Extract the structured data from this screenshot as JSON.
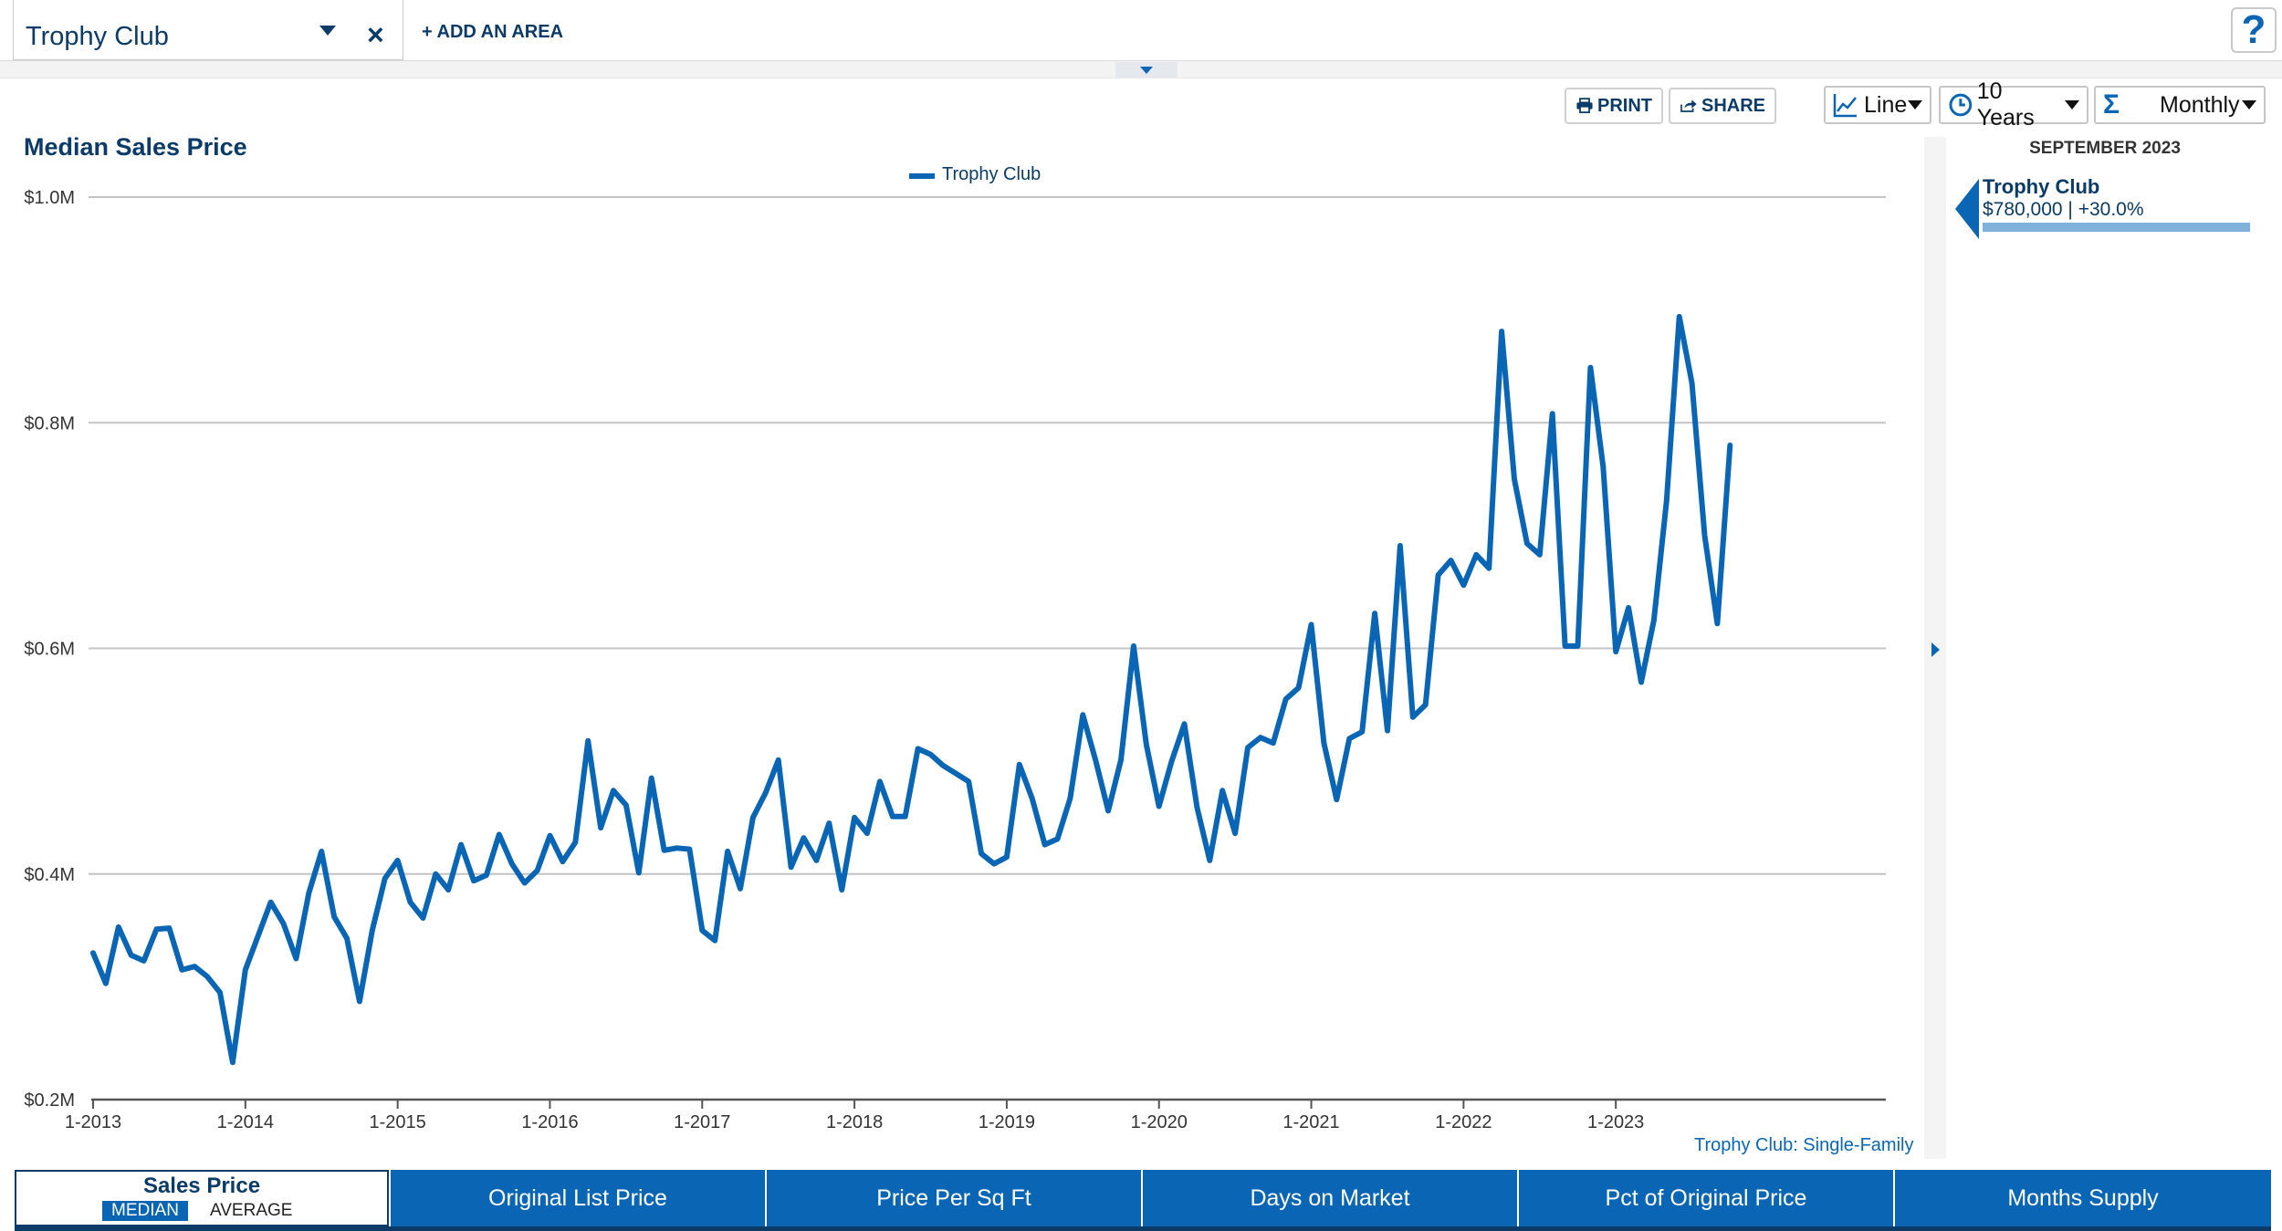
{
  "area": {
    "name": "Trophy Club",
    "add_label": "+ ADD AN AREA"
  },
  "help_label": "?",
  "toolbar": {
    "print_label": "PRINT",
    "share_label": "SHARE",
    "chart_type": "Line",
    "range": "10 Years",
    "interval": "Monthly"
  },
  "panel": {
    "date": "SEPTEMBER 2023",
    "name": "Trophy Club",
    "value": "$780,000 | +30.0%"
  },
  "source_note": "Trophy Club: Single-Family",
  "tabs": {
    "sales_price": "Sales Price",
    "median": "MEDIAN",
    "average": "AVERAGE",
    "others": [
      "Original List Price",
      "Price Per Sq Ft",
      "Days on Market",
      "Pct of Original Price",
      "Months Supply"
    ]
  },
  "colors": {
    "accent": "#0a66b4",
    "navy": "#0b3b66"
  },
  "chart_data": {
    "type": "line",
    "title": "Median Sales Price",
    "xlabel": "",
    "ylabel": "",
    "ylim": [
      200000,
      1000000
    ],
    "yticks": [
      200000,
      400000,
      600000,
      800000,
      1000000
    ],
    "ytick_labels": [
      "$0.2M",
      "$0.4M",
      "$0.6M",
      "$0.8M",
      "$1.0M"
    ],
    "xticks": [
      "1-2013",
      "1-2014",
      "1-2015",
      "1-2016",
      "1-2017",
      "1-2018",
      "1-2019",
      "1-2020",
      "1-2021",
      "1-2022",
      "1-2023"
    ],
    "grid": true,
    "legend_position": "top-center",
    "series": [
      {
        "name": "Trophy Club",
        "color": "#0a66b4",
        "start": "1-2013",
        "frequency": "monthly",
        "values": [
          330000,
          303000,
          353000,
          328000,
          323000,
          351000,
          352000,
          315000,
          318000,
          309000,
          295000,
          233000,
          315000,
          345000,
          375000,
          356000,
          325000,
          383000,
          420000,
          362000,
          343000,
          287000,
          350000,
          396000,
          412000,
          375000,
          361000,
          400000,
          386000,
          426000,
          394000,
          399000,
          435000,
          409000,
          392000,
          403000,
          434000,
          411000,
          428000,
          518000,
          441000,
          474000,
          461000,
          401000,
          485000,
          421000,
          423000,
          422000,
          350000,
          341000,
          420000,
          387000,
          450000,
          472000,
          501000,
          406000,
          432000,
          412000,
          445000,
          386000,
          450000,
          436000,
          482000,
          451000,
          451000,
          511000,
          506000,
          496000,
          489000,
          482000,
          418000,
          409000,
          415000,
          497000,
          467000,
          426000,
          431000,
          467000,
          541000,
          501000,
          456000,
          501000,
          602000,
          515000,
          460000,
          500000,
          533000,
          459000,
          412000,
          474000,
          436000,
          512000,
          521000,
          516000,
          555000,
          565000,
          621000,
          516000,
          466000,
          520000,
          526000,
          631000,
          527000,
          691000,
          539000,
          550000,
          665000,
          678000,
          656000,
          683000,
          671000,
          881000,
          750000,
          693000,
          683000,
          808000,
          602000,
          602000,
          849000,
          761000,
          597000,
          636000,
          570000,
          625000,
          731000,
          894000,
          835000,
          700000,
          622000,
          780000
        ]
      }
    ]
  }
}
